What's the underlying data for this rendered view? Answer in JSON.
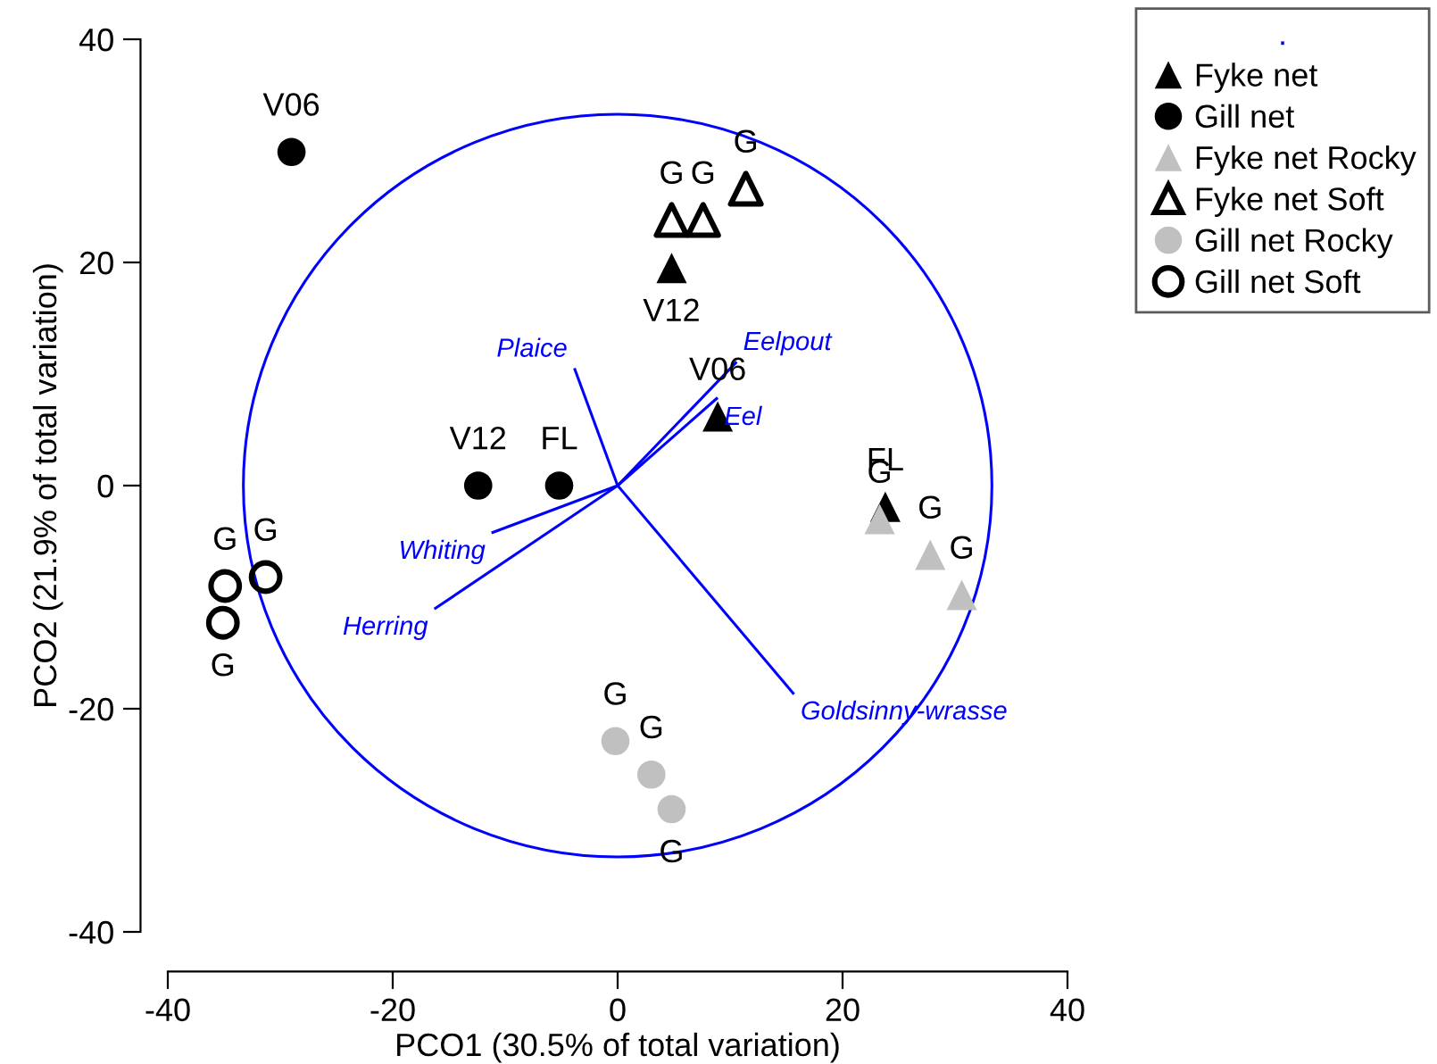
{
  "chart_data": {
    "type": "scatter",
    "xlabel": "PCO1 (30.5% of total variation)",
    "ylabel": "PCO2 (21.9% of total variation)",
    "legend_title": ".",
    "legend": "top right",
    "xlim": [
      -40,
      40
    ],
    "ylim": [
      -40,
      40
    ],
    "xticks": [
      -40,
      -20,
      0,
      20,
      40
    ],
    "yticks": [
      -40,
      -20,
      0,
      20,
      40
    ],
    "grid": false,
    "series": [
      {
        "name": "Fyke net",
        "marker": "triangle",
        "color": "#000000",
        "x": [
          4.8,
          8.9,
          23.8
        ],
        "values": [
          19.5,
          6.2,
          -1.9
        ]
      },
      {
        "name": "Gill net",
        "marker": "circle",
        "color": "#000000",
        "x": [
          -29.0,
          -12.4,
          -5.2
        ],
        "values": [
          29.9,
          0,
          0
        ]
      },
      {
        "name": "Fyke net Rocky",
        "marker": "triangle",
        "color": "#c0c0c0",
        "x": [
          23.3,
          27.8,
          30.6
        ],
        "values": [
          -3.0,
          -6.2,
          -9.8
        ]
      },
      {
        "name": "Fyke net Soft",
        "marker": "triangle-open",
        "color": "#000000",
        "x": [
          4.8,
          7.6,
          11.4
        ],
        "values": [
          23.8,
          23.8,
          26.6
        ]
      },
      {
        "name": "Gill net Rocky",
        "marker": "circle",
        "color": "#c0c0c0",
        "x": [
          -0.2,
          3.0,
          4.8
        ],
        "values": [
          -22.9,
          -25.9,
          -29.0
        ]
      },
      {
        "name": "Gill net Soft",
        "marker": "circle-open",
        "color": "#000000",
        "x": [
          -34.9,
          -31.3,
          -35.1
        ],
        "values": [
          -9.0,
          -8.2,
          -12.3
        ]
      },
      {
        "name": "Plaice",
        "type": "line",
        "color": "#0000ff",
        "x": [
          0,
          -3.8
        ],
        "values": [
          0,
          10.4
        ]
      },
      {
        "name": "Eelpout",
        "type": "line",
        "color": "#0000ff",
        "x": [
          0,
          10.5
        ],
        "values": [
          0,
          11.0
        ]
      },
      {
        "name": "Eel",
        "type": "line",
        "color": "#0000ff",
        "x": [
          0,
          8.8
        ],
        "values": [
          0,
          7.8
        ]
      },
      {
        "name": "Whiting",
        "type": "line",
        "color": "#0000ff",
        "x": [
          0,
          -11.1
        ],
        "values": [
          0,
          -4.2
        ]
      },
      {
        "name": "Herring",
        "type": "line",
        "color": "#0000ff",
        "x": [
          0,
          -16.2
        ],
        "values": [
          0,
          -11.0
        ]
      },
      {
        "name": "Goldsinny-wrasse",
        "type": "line",
        "color": "#0000ff",
        "x": [
          0,
          15.6
        ],
        "values": [
          0,
          -18.6
        ]
      }
    ],
    "annotations": [
      {
        "text": "V06",
        "x": -29.0,
        "y": 29.9
      },
      {
        "text": "V12",
        "x": -12.4,
        "y": 0
      },
      {
        "text": "FL",
        "x": -5.2,
        "y": 0
      },
      {
        "text": "V12",
        "x": 4.8,
        "y": 19.5
      },
      {
        "text": "V06",
        "x": 8.9,
        "y": 6.2
      },
      {
        "text": "FL",
        "x": 23.8,
        "y": -1.9
      },
      {
        "text": "G",
        "x": 23.3,
        "y": -3.0
      },
      {
        "text": "G",
        "x": 27.8,
        "y": -6.2
      },
      {
        "text": "G",
        "x": 30.6,
        "y": -9.8
      },
      {
        "text": "G",
        "x": 4.8,
        "y": 23.8
      },
      {
        "text": "G",
        "x": 7.6,
        "y": 23.8
      },
      {
        "text": "G",
        "x": 11.4,
        "y": 26.6
      },
      {
        "text": "G",
        "x": -0.2,
        "y": -22.9
      },
      {
        "text": "G",
        "x": 3.0,
        "y": -25.9
      },
      {
        "text": "G",
        "x": 4.8,
        "y": -29.0
      },
      {
        "text": "G",
        "x": -34.9,
        "y": -9.0
      },
      {
        "text": "G",
        "x": -31.3,
        "y": -8.2
      },
      {
        "text": "G",
        "x": -35.1,
        "y": -12.3
      }
    ]
  }
}
